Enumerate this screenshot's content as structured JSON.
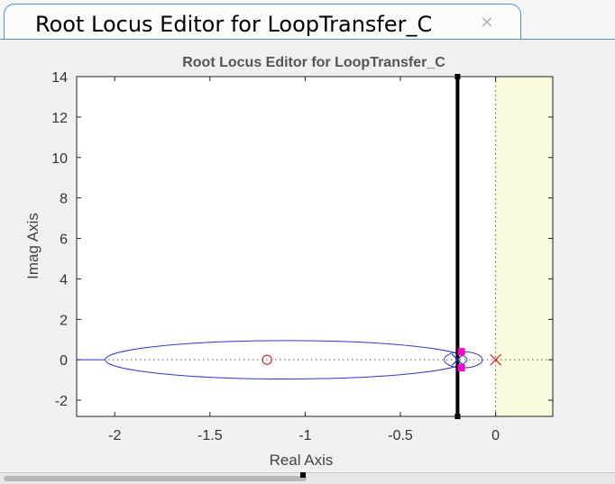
{
  "tab": {
    "title": "Root Locus Editor for LoopTransfer_C",
    "close_icon": "close-icon"
  },
  "chart_data": {
    "type": "scatter",
    "title": "Root Locus Editor for LoopTransfer_C",
    "xlabel": "Real Axis",
    "ylabel": "Imag Axis",
    "xlim": [
      -2.2,
      0.3
    ],
    "ylim": [
      -2.8,
      14
    ],
    "xticks": [
      -2,
      -1.5,
      -1,
      -0.5,
      0
    ],
    "xtick_labels": [
      "-2",
      "-1.5",
      "-1",
      "-0.5",
      "0"
    ],
    "yticks": [
      -2,
      0,
      2,
      4,
      6,
      8,
      10,
      12,
      14
    ],
    "ytick_labels": [
      "-2",
      "0",
      "2",
      "4",
      "6",
      "8",
      "10",
      "12",
      "14"
    ],
    "grid": false,
    "unstable_region": {
      "x_from": 0,
      "color": "#fafadc"
    },
    "zeros": [
      {
        "re": -1.2,
        "im": 0
      }
    ],
    "poles": [
      {
        "re": 0,
        "im": 0
      },
      {
        "re": -0.2,
        "im": 0
      }
    ],
    "closed_loop_poles": [
      {
        "re": -0.18,
        "im": 0.4
      },
      {
        "re": -0.18,
        "im": -0.4
      }
    ],
    "constraint_line_x": -0.2,
    "locus": {
      "real_axis_segment": [
        -2.2,
        -2.05
      ],
      "ellipse": {
        "center_re": -1.1,
        "semi_re": 0.95,
        "semi_im": 0.95
      },
      "small_loop": {
        "center_re": -0.17,
        "semi_re": 0.1,
        "semi_im": 0.4
      }
    },
    "colors": {
      "locus": "#3333cc",
      "pole": "#e0202a",
      "zero": "#e0202a",
      "cl_pole": "#ff00cc",
      "constraint": "#000000"
    }
  }
}
